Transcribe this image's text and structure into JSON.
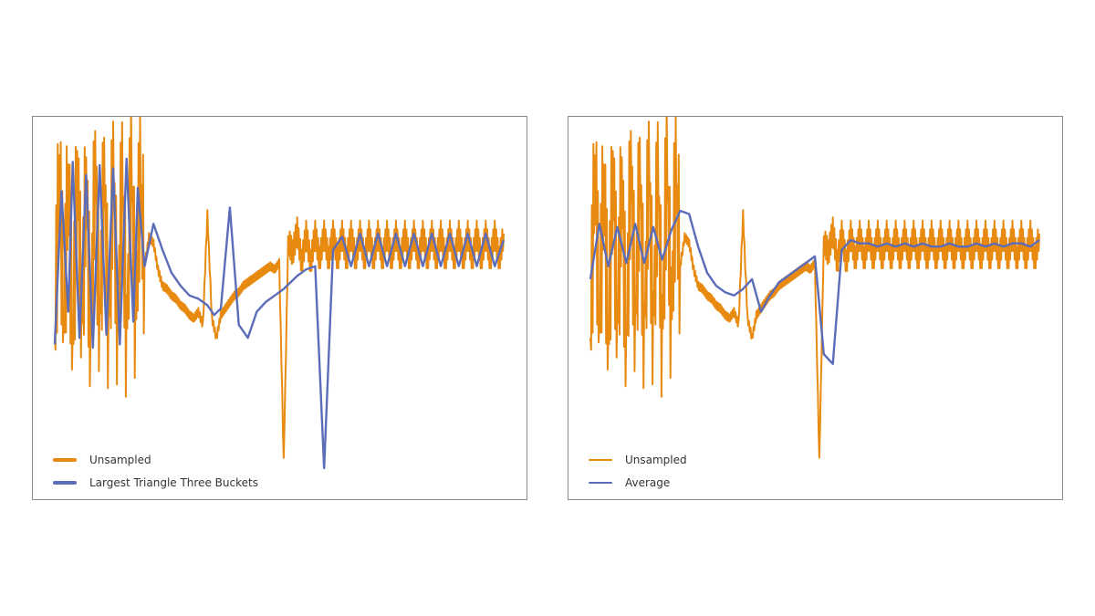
{
  "colors": {
    "unsampled": "#e88a10",
    "lttb": "#5b6cb8",
    "average": "#5b6cb8"
  },
  "chart_data": [
    {
      "type": "line",
      "title": "",
      "xlabel": "",
      "ylabel": "",
      "grid": false,
      "legend": "bottom-left",
      "xlim": [
        0,
        100
      ],
      "ylim": [
        0,
        100
      ],
      "series": [
        {
          "name": "Unsampled",
          "color": "#e88a10",
          "mode": "dense",
          "x": [
            0,
            1,
            2,
            3,
            4,
            5,
            6,
            7,
            8,
            9,
            10,
            11,
            12,
            13,
            14,
            15,
            16,
            17,
            18,
            19,
            20,
            21,
            22,
            23,
            24,
            25,
            26,
            27,
            28,
            29,
            30,
            31,
            32,
            33,
            34,
            35,
            36,
            37,
            38,
            39,
            40,
            41,
            42,
            43,
            44,
            45,
            46,
            47,
            48,
            49,
            50,
            51,
            52,
            53,
            54,
            55,
            56,
            57,
            58,
            59,
            60,
            61,
            62,
            63,
            64,
            65,
            66,
            67,
            68,
            69,
            70,
            71,
            72,
            73,
            74,
            75,
            76,
            77,
            78,
            79,
            80,
            81,
            82,
            83,
            84,
            85,
            86,
            87,
            88,
            89,
            90,
            91,
            92,
            93,
            94,
            95,
            96,
            97,
            98,
            99,
            100
          ],
          "y": [
            40,
            95,
            45,
            90,
            38,
            92,
            44,
            88,
            36,
            94,
            42,
            90,
            38,
            93,
            40,
            91,
            37,
            95,
            44,
            90,
            62,
            71,
            69,
            61,
            56,
            55,
            53,
            52,
            50,
            49,
            47,
            46,
            48,
            44,
            78,
            46,
            40,
            47,
            49,
            51,
            53,
            54,
            56,
            57,
            58,
            59,
            60,
            61,
            62,
            61,
            63,
            2,
            70,
            66,
            73,
            63,
            72,
            63,
            72,
            64,
            72,
            64,
            72,
            64,
            72,
            64,
            72,
            64,
            72,
            64,
            72,
            64,
            72,
            64,
            72,
            64,
            72,
            64,
            72,
            64,
            72,
            64,
            72,
            64,
            72,
            64,
            72,
            64,
            72,
            64,
            72,
            64,
            72,
            64,
            72,
            64,
            72,
            64,
            72,
            64,
            72
          ]
        },
        {
          "name": "Largest Triangle Three Buckets",
          "color": "#5b6cb8",
          "mode": "line",
          "x": [
            0,
            1.5,
            3,
            4,
            5.5,
            7,
            8.5,
            10,
            11.5,
            13,
            14.5,
            16,
            17.5,
            18.5,
            20,
            22,
            24,
            26,
            28,
            30,
            32,
            34,
            35.5,
            37,
            39,
            41,
            43,
            45,
            47,
            49,
            51,
            52.5,
            54,
            56,
            58,
            60,
            62,
            64,
            66,
            68,
            70,
            72,
            74,
            76,
            78,
            80,
            82,
            84,
            86,
            88,
            90,
            92,
            94,
            96,
            98,
            100
          ],
          "y": [
            38,
            85,
            48,
            94,
            40,
            90,
            37,
            93,
            41,
            92,
            38,
            95,
            45,
            86,
            62,
            75,
            67,
            60,
            56,
            53,
            52,
            50,
            47,
            49,
            80,
            44,
            40,
            48,
            51,
            53,
            55,
            57,
            59,
            61,
            62,
            0,
            67,
            71,
            62,
            72,
            62,
            72,
            62,
            72,
            62,
            72,
            62,
            72,
            62,
            72,
            62,
            72,
            62,
            72,
            62,
            70
          ]
        }
      ]
    },
    {
      "type": "line",
      "title": "",
      "xlabel": "",
      "ylabel": "",
      "grid": false,
      "legend": "bottom-left",
      "xlim": [
        0,
        100
      ],
      "ylim": [
        0,
        100
      ],
      "series": [
        {
          "name": "Unsampled",
          "color": "#e88a10",
          "mode": "dense",
          "x": [
            0,
            1,
            2,
            3,
            4,
            5,
            6,
            7,
            8,
            9,
            10,
            11,
            12,
            13,
            14,
            15,
            16,
            17,
            18,
            19,
            20,
            21,
            22,
            23,
            24,
            25,
            26,
            27,
            28,
            29,
            30,
            31,
            32,
            33,
            34,
            35,
            36,
            37,
            38,
            39,
            40,
            41,
            42,
            43,
            44,
            45,
            46,
            47,
            48,
            49,
            50,
            51,
            52,
            53,
            54,
            55,
            56,
            57,
            58,
            59,
            60,
            61,
            62,
            63,
            64,
            65,
            66,
            67,
            68,
            69,
            70,
            71,
            72,
            73,
            74,
            75,
            76,
            77,
            78,
            79,
            80,
            81,
            82,
            83,
            84,
            85,
            86,
            87,
            88,
            89,
            90,
            91,
            92,
            93,
            94,
            95,
            96,
            97,
            98,
            99,
            100
          ],
          "y": [
            40,
            95,
            45,
            90,
            38,
            92,
            44,
            88,
            36,
            94,
            42,
            90,
            38,
            93,
            40,
            91,
            37,
            95,
            44,
            90,
            62,
            71,
            69,
            61,
            56,
            55,
            53,
            52,
            50,
            49,
            47,
            46,
            48,
            44,
            78,
            46,
            40,
            47,
            49,
            51,
            53,
            54,
            56,
            57,
            58,
            59,
            60,
            61,
            62,
            61,
            63,
            2,
            70,
            66,
            73,
            63,
            72,
            63,
            72,
            64,
            72,
            64,
            72,
            64,
            72,
            64,
            72,
            64,
            72,
            64,
            72,
            64,
            72,
            64,
            72,
            64,
            72,
            64,
            72,
            64,
            72,
            64,
            72,
            64,
            72,
            64,
            72,
            64,
            72,
            64,
            72,
            64,
            72,
            64,
            72,
            64,
            72,
            64,
            72,
            64,
            72
          ]
        },
        {
          "name": "Average",
          "color": "#5b6cb8",
          "mode": "line",
          "x": [
            0,
            2,
            4,
            6,
            8,
            10,
            12,
            14,
            16,
            18,
            20,
            22,
            24,
            26,
            28,
            30,
            32,
            34,
            36,
            38,
            40,
            42,
            44,
            46,
            48,
            50,
            52,
            54,
            56,
            58,
            60,
            62,
            64,
            66,
            68,
            70,
            72,
            74,
            76,
            78,
            80,
            82,
            84,
            86,
            88,
            90,
            92,
            94,
            96,
            98,
            100
          ],
          "y": [
            58,
            75,
            62,
            74,
            63,
            75,
            63,
            74,
            64,
            73,
            79,
            78,
            68,
            60,
            56,
            54,
            53,
            55,
            58,
            48,
            53,
            57,
            59,
            61,
            63,
            65,
            35,
            32,
            67,
            70,
            69,
            69,
            68,
            69,
            68,
            69,
            68,
            69,
            68,
            68,
            69,
            68,
            68,
            69,
            68,
            69,
            68,
            69,
            69,
            68,
            70
          ]
        }
      ]
    }
  ]
}
